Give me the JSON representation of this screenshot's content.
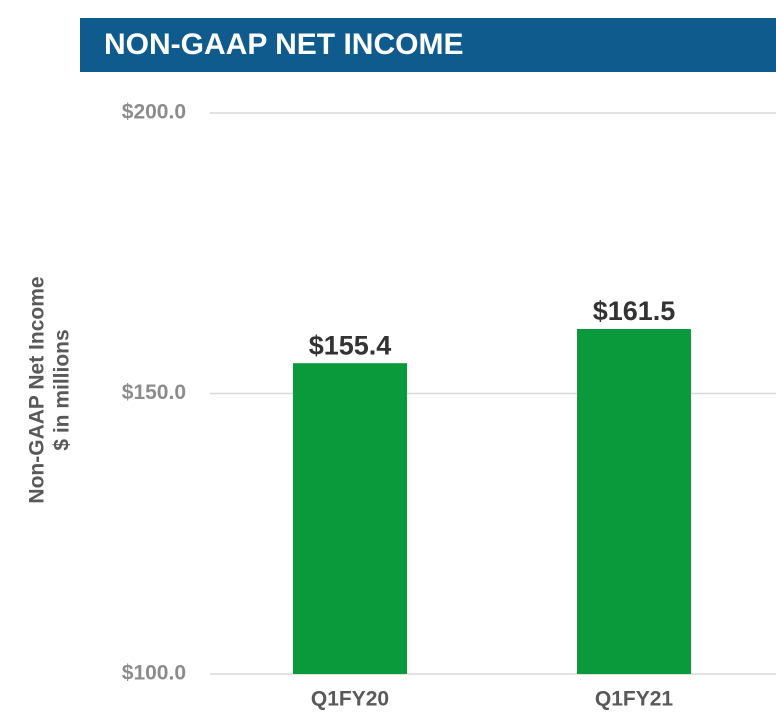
{
  "chart_data": {
    "type": "bar",
    "title": "NON-GAAP NET INCOME",
    "ylabel": [
      "Non-GAAP Net Income",
      "$ in millions"
    ],
    "categories": [
      "Q1FY20",
      "Q1FY21"
    ],
    "values": [
      155.4,
      161.5
    ],
    "value_labels": [
      "$155.4",
      "$161.5"
    ],
    "color": "#0a9a3c",
    "ylim": [
      100,
      200
    ],
    "yticks": [
      {
        "value": 100,
        "label": "$100.0"
      },
      {
        "value": 150,
        "label": "$150.0"
      },
      {
        "value": 200,
        "label": "$200.0"
      }
    ],
    "grid": true
  }
}
